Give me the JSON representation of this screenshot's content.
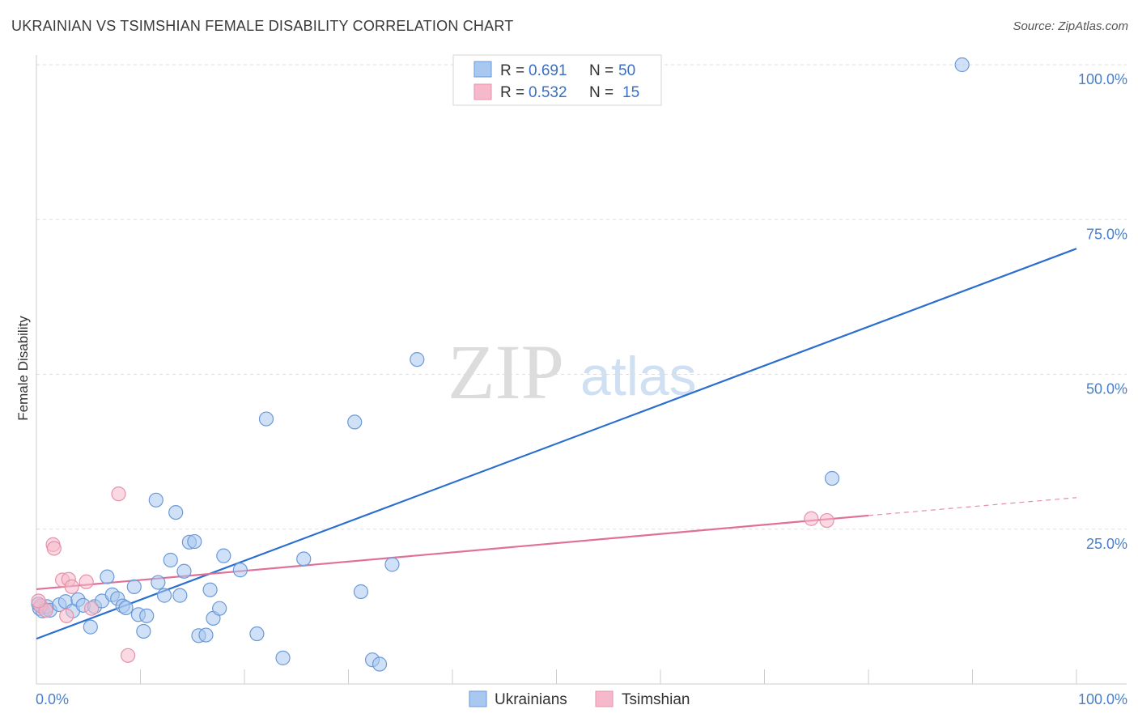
{
  "title": "UKRAINIAN VS TSIMSHIAN FEMALE DISABILITY CORRELATION CHART",
  "source": "Source: ZipAtlas.com",
  "watermark": {
    "zip": "ZIP",
    "atlas": "atlas"
  },
  "colors": {
    "blue_fill": "#a9c8f0",
    "blue_stroke": "#6a9ad8",
    "blue_line": "#2a6fd0",
    "pink_fill": "#f6b9cb",
    "pink_stroke": "#e592ac",
    "pink_line": "#e0709a",
    "grid": "#dddddd",
    "tick_label": "#4a7fc9"
  },
  "legend": {
    "rows": [
      {
        "r_label": "R =",
        "r_value": "0.691",
        "n_label": "N =",
        "n_value": "50"
      },
      {
        "r_label": "R =",
        "r_value": "0.532",
        "n_label": "N =",
        "n_value": "15"
      }
    ]
  },
  "bottom_legend": [
    "Ukrainians",
    "Tsimshian"
  ],
  "chart_data": {
    "type": "scatter",
    "title": "UKRAINIAN VS TSIMSHIAN FEMALE DISABILITY CORRELATION CHART",
    "xlabel": "",
    "ylabel": "Female Disability",
    "xlim": [
      0,
      100
    ],
    "ylim": [
      0,
      105
    ],
    "x_tick_labels": [
      "0.0%",
      "100.0%"
    ],
    "y_tick_labels": [
      "25.0%",
      "50.0%",
      "75.0%",
      "100.0%"
    ],
    "y_ticks": [
      25,
      50,
      75,
      100
    ],
    "series": [
      {
        "name": "Ukrainians",
        "R": 0.691,
        "N": 50,
        "points": [
          [
            0.3,
            12.2
          ],
          [
            0.6,
            11.8
          ],
          [
            1.0,
            12.5
          ],
          [
            1.3,
            11.9
          ],
          [
            2.2,
            12.8
          ],
          [
            2.8,
            13.3
          ],
          [
            3.5,
            11.8
          ],
          [
            4.0,
            13.6
          ],
          [
            4.5,
            12.7
          ],
          [
            5.2,
            9.2
          ],
          [
            5.6,
            12.5
          ],
          [
            6.3,
            13.4
          ],
          [
            6.8,
            17.3
          ],
          [
            7.3,
            14.4
          ],
          [
            7.8,
            13.8
          ],
          [
            8.3,
            12.6
          ],
          [
            8.6,
            12.3
          ],
          [
            9.4,
            15.7
          ],
          [
            9.8,
            11.2
          ],
          [
            10.3,
            8.5
          ],
          [
            10.6,
            11.0
          ],
          [
            11.5,
            29.7
          ],
          [
            11.7,
            16.4
          ],
          [
            12.3,
            14.3
          ],
          [
            12.9,
            20.0
          ],
          [
            13.4,
            27.7
          ],
          [
            13.8,
            14.3
          ],
          [
            14.2,
            18.2
          ],
          [
            14.7,
            22.9
          ],
          [
            15.2,
            23.0
          ],
          [
            15.6,
            7.8
          ],
          [
            16.3,
            7.9
          ],
          [
            16.7,
            15.2
          ],
          [
            17.0,
            10.6
          ],
          [
            17.6,
            12.2
          ],
          [
            18.0,
            20.7
          ],
          [
            19.6,
            18.4
          ],
          [
            21.2,
            8.1
          ],
          [
            22.1,
            42.8
          ],
          [
            23.7,
            4.2
          ],
          [
            25.7,
            20.2
          ],
          [
            30.6,
            42.3
          ],
          [
            31.2,
            14.9
          ],
          [
            32.3,
            3.9
          ],
          [
            33.0,
            3.2
          ],
          [
            34.2,
            19.3
          ],
          [
            36.6,
            52.4
          ],
          [
            76.5,
            33.2
          ],
          [
            89.0,
            100.0
          ],
          [
            0.2,
            12.9
          ]
        ],
        "trend": {
          "x": [
            0,
            100
          ],
          "y": [
            7.3,
            70.3
          ]
        }
      },
      {
        "name": "Tsimshian",
        "R": 0.532,
        "N": 15,
        "points": [
          [
            0.4,
            12.6
          ],
          [
            0.9,
            11.9
          ],
          [
            1.6,
            22.5
          ],
          [
            1.7,
            21.9
          ],
          [
            2.5,
            16.8
          ],
          [
            3.1,
            16.9
          ],
          [
            3.4,
            15.7
          ],
          [
            2.9,
            11.0
          ],
          [
            4.8,
            16.5
          ],
          [
            5.3,
            12.2
          ],
          [
            7.9,
            30.7
          ],
          [
            8.8,
            4.6
          ],
          [
            74.5,
            26.7
          ],
          [
            76.0,
            26.4
          ],
          [
            0.2,
            13.4
          ]
        ],
        "trend": {
          "x": [
            0,
            80
          ],
          "y": [
            15.3,
            27.2
          ],
          "dashed_to": [
            100,
            30.1
          ]
        }
      }
    ]
  }
}
